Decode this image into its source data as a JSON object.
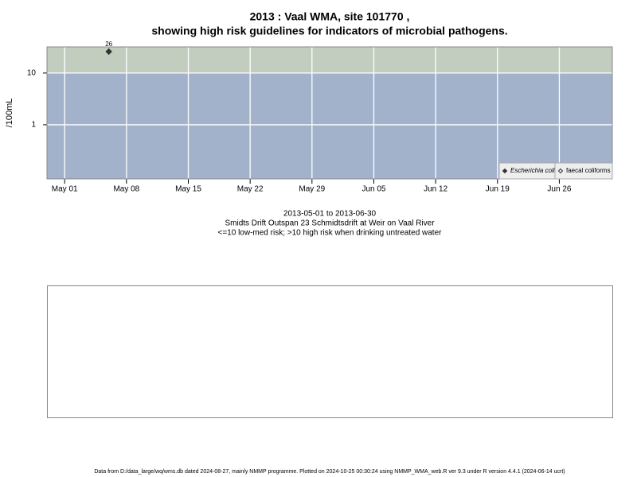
{
  "chart_data": {
    "type": "scatter",
    "title": "2013 : Vaal WMA, site 101770 ,",
    "subtitle": "showing high risk guidelines for indicators of microbial pathogens.",
    "y_label": "/100mL",
    "x": [
      "2013-05-06"
    ],
    "series": [
      {
        "name": "Escherichia coli",
        "color": "#333333",
        "values": [
          26
        ]
      },
      {
        "name": "faecal coliforms",
        "color": "#333333",
        "values": [
          null
        ]
      }
    ],
    "threshold": 10,
    "band_colors": {
      "above": "#c2cdc0",
      "below": "#a2b2cb"
    },
    "log_y": true,
    "ylim": [
      0.09,
      32
    ],
    "yticks": [
      1,
      10
    ],
    "xlim": [
      "2013-04-29",
      "2013-07-02"
    ],
    "xticks": [
      {
        "value": "2013-05-01",
        "label": "May 01"
      },
      {
        "value": "2013-05-08",
        "label": "May 08"
      },
      {
        "value": "2013-05-15",
        "label": "May 15"
      },
      {
        "value": "2013-05-22",
        "label": "May 22"
      },
      {
        "value": "2013-05-29",
        "label": "May 29"
      },
      {
        "value": "2013-06-05",
        "label": "Jun 05"
      },
      {
        "value": "2013-06-12",
        "label": "Jun 12"
      },
      {
        "value": "2013-06-19",
        "label": "Jun 19"
      },
      {
        "value": "2013-06-26",
        "label": "Jun 26"
      }
    ],
    "grid": true,
    "legend_position": "bottom-right",
    "caption": [
      "2013-05-01 to 2013-06-30",
      "Smidts Drift Outspan 23 Schmidtsdrift at Weir on Vaal River",
      "<=10 low-med risk; >10 high risk when drinking untreated water"
    ],
    "footer": "Data from D:/data_large/wq/wms.db dated 2024-08-27, mainly NMMP programme. Plotted on 2024-10-25 00:30:24 using NMMP_WMA_web.R ver 9.3 under R version 4.4.1 (2024-06-14 ucrt)"
  }
}
